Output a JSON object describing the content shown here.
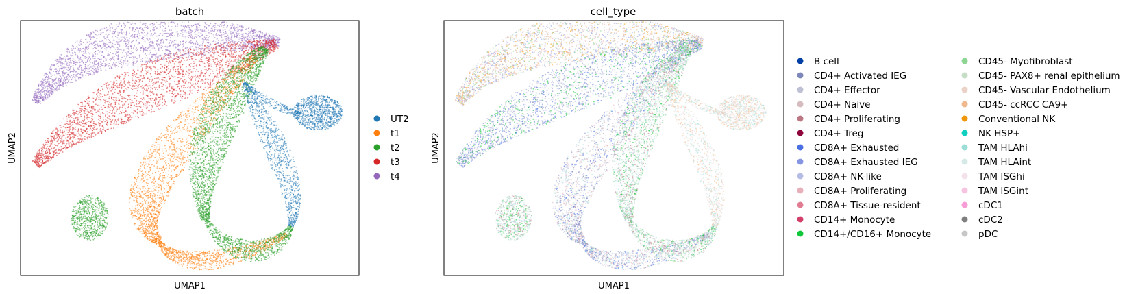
{
  "chart_data": [
    {
      "type": "scatter",
      "title": "batch",
      "xlabel": "UMAP1",
      "ylabel": "UMAP2",
      "grid": false,
      "ticks": false,
      "legend_position": "right",
      "legend": [
        {
          "label": "UT2",
          "color": "#1f77b4"
        },
        {
          "label": "t1",
          "color": "#ff7f0e"
        },
        {
          "label": "t2",
          "color": "#2ca02c"
        },
        {
          "label": "t3",
          "color": "#d62728"
        },
        {
          "label": "t4",
          "color": "#9467bd"
        }
      ]
    },
    {
      "type": "scatter",
      "title": "cell_type",
      "xlabel": "UMAP1",
      "ylabel": "UMAP2",
      "grid": false,
      "ticks": false,
      "legend_position": "right",
      "legend": [
        {
          "label": "B cell",
          "color": "#023fa5"
        },
        {
          "label": "CD4+ Activated IEG",
          "color": "#7d87b9"
        },
        {
          "label": "CD4+ Effector",
          "color": "#bec1d4"
        },
        {
          "label": "CD4+ Naive",
          "color": "#d6bcc0"
        },
        {
          "label": "CD4+ Proliferating",
          "color": "#bb7784"
        },
        {
          "label": "CD4+ Treg",
          "color": "#8e063b"
        },
        {
          "label": "CD8A+ Exhausted",
          "color": "#4a6fe3"
        },
        {
          "label": "CD8A+ Exhausted IEG",
          "color": "#8595e1"
        },
        {
          "label": "CD8A+ NK-like",
          "color": "#b5bbe3"
        },
        {
          "label": "CD8A+ Proliferating",
          "color": "#e6afb9"
        },
        {
          "label": "CD8A+ Tissue-resident",
          "color": "#e07b91"
        },
        {
          "label": "CD14+ Monocyte",
          "color": "#d33f6a"
        },
        {
          "label": "CD14+/CD16+ Monocyte",
          "color": "#11c638"
        },
        {
          "label": "CD45- Myofibroblast",
          "color": "#8dd593"
        },
        {
          "label": "CD45- PAX8+ renal epithelium",
          "color": "#c6dec7"
        },
        {
          "label": "CD45- Vascular Endothelium",
          "color": "#ead3c6"
        },
        {
          "label": "CD45- ccRCC CA9+",
          "color": "#f0b98d"
        },
        {
          "label": "Conventional NK",
          "color": "#ef9708"
        },
        {
          "label": "NK HSP+",
          "color": "#0fcfc0"
        },
        {
          "label": "TAM HLAhi",
          "color": "#9cded6"
        },
        {
          "label": "TAM HLAint",
          "color": "#d5eae7"
        },
        {
          "label": "TAM ISGhi",
          "color": "#f3e1eb"
        },
        {
          "label": "TAM ISGint",
          "color": "#f6c4e1"
        },
        {
          "label": "cDC1",
          "color": "#f79cd4"
        },
        {
          "label": "cDC2",
          "color": "#7f7f7f"
        },
        {
          "label": "pDC",
          "color": "#c7c7c7"
        }
      ]
    }
  ]
}
